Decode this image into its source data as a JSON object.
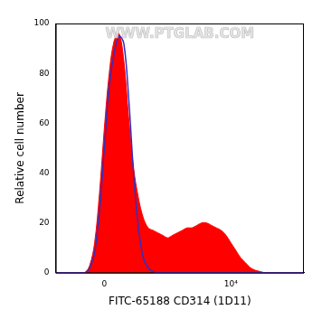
{
  "chart_data": {
    "type": "line",
    "x_label": "FITC-65188 CD314 (1D11)",
    "y_label": "Relative cell number",
    "annotation": "WWW.PTGLAB.COM",
    "categories": [
      null,
      null,
      null,
      null,
      null,
      null,
      null,
      null,
      null,
      null,
      "0",
      null,
      null,
      null,
      null,
      null,
      null,
      null,
      null,
      null,
      null,
      null,
      null,
      null,
      null,
      null,
      null,
      null,
      null,
      null,
      null,
      null,
      null,
      null,
      null,
      null,
      "10⁴",
      null,
      null,
      null,
      null,
      null,
      null,
      null,
      null,
      null,
      null,
      null,
      null,
      null,
      null,
      null
    ],
    "series": [
      {
        "type": "area",
        "color": "#ff0000",
        "values": [
          0,
          0,
          0,
          0,
          0,
          0,
          0,
          3,
          12,
          32,
          58,
          80,
          93,
          96,
          85,
          62,
          42,
          30,
          22,
          18,
          17,
          16,
          15,
          14,
          15,
          16,
          17,
          18,
          18,
          19,
          20,
          20,
          19,
          18,
          17,
          15,
          12,
          9,
          6,
          4,
          2,
          1,
          0.5,
          0,
          0,
          0,
          0,
          0,
          0,
          0,
          0,
          0
        ]
      },
      {
        "type": "line",
        "color": "#3030c0",
        "values": [
          0,
          0,
          0,
          0,
          0,
          0,
          0,
          2,
          8,
          25,
          50,
          75,
          88,
          95,
          92,
          70,
          40,
          18,
          6,
          2,
          0.5,
          0,
          0,
          0,
          0,
          0,
          0,
          0,
          0,
          0,
          0,
          0,
          0,
          0,
          0,
          0,
          0,
          0,
          0,
          0,
          0,
          0,
          0,
          0,
          0,
          0,
          0,
          0,
          0,
          0,
          0,
          0
        ]
      }
    ],
    "ylim": [
      0,
      100
    ],
    "yticks": [
      0,
      20,
      40,
      60,
      80,
      100
    ],
    "grid": false
  }
}
